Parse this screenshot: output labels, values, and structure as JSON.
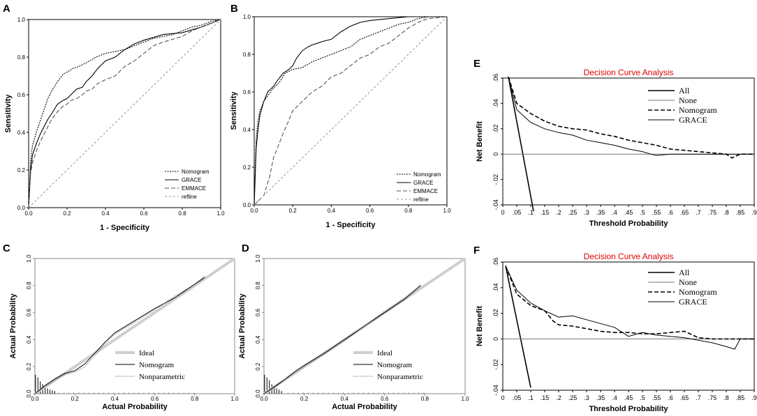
{
  "panels": {
    "A": {
      "letter": "A",
      "chart_data": {
        "type": "line",
        "xlabel": "1 - Specificity",
        "ylabel": "Sensitivity",
        "xlim": [
          0,
          1
        ],
        "ylim": [
          0,
          1
        ],
        "xticks": [
          "0.0",
          "0.2",
          "0.4",
          "0.6",
          "0.8",
          "1.0"
        ],
        "yticks": [
          "0.0",
          "0.2",
          "0.4",
          "0.6",
          "0.8",
          "1.0"
        ],
        "legend": [
          "Nomogram",
          "GRACE",
          "EMMACE",
          "refline"
        ],
        "series": [
          {
            "name": "Nomogram",
            "x": [
              0,
              0.01,
              0.02,
              0.04,
              0.06,
              0.08,
              0.1,
              0.12,
              0.15,
              0.18,
              0.2,
              0.23,
              0.26,
              0.3,
              0.35,
              0.4,
              0.45,
              0.5,
              0.55,
              0.6,
              0.65,
              0.7,
              0.75,
              0.8,
              0.85,
              0.9,
              0.95,
              1
            ],
            "y": [
              0,
              0.25,
              0.33,
              0.4,
              0.46,
              0.52,
              0.58,
              0.62,
              0.67,
              0.71,
              0.72,
              0.74,
              0.75,
              0.77,
              0.8,
              0.82,
              0.83,
              0.84,
              0.86,
              0.88,
              0.9,
              0.91,
              0.92,
              0.94,
              0.96,
              0.97,
              0.99,
              1
            ]
          },
          {
            "name": "GRACE",
            "x": [
              0,
              0.01,
              0.02,
              0.04,
              0.06,
              0.08,
              0.1,
              0.12,
              0.15,
              0.18,
              0.2,
              0.22,
              0.25,
              0.28,
              0.3,
              0.33,
              0.36,
              0.4,
              0.45,
              0.5,
              0.55,
              0.6,
              0.7,
              0.8,
              0.9,
              0.95,
              1
            ],
            "y": [
              0,
              0.2,
              0.28,
              0.34,
              0.39,
              0.43,
              0.47,
              0.5,
              0.55,
              0.57,
              0.58,
              0.6,
              0.63,
              0.64,
              0.67,
              0.7,
              0.74,
              0.78,
              0.8,
              0.84,
              0.87,
              0.89,
              0.92,
              0.93,
              0.96,
              0.98,
              1
            ]
          },
          {
            "name": "EMMACE",
            "x": [
              0,
              0.01,
              0.02,
              0.04,
              0.06,
              0.08,
              0.1,
              0.12,
              0.15,
              0.18,
              0.2,
              0.22,
              0.25,
              0.28,
              0.3,
              0.33,
              0.36,
              0.4,
              0.45,
              0.5,
              0.55,
              0.6,
              0.65,
              0.7,
              0.8,
              0.85,
              0.9,
              0.95,
              1
            ],
            "y": [
              0,
              0.18,
              0.24,
              0.3,
              0.35,
              0.39,
              0.43,
              0.47,
              0.51,
              0.54,
              0.55,
              0.57,
              0.58,
              0.6,
              0.62,
              0.63,
              0.66,
              0.68,
              0.7,
              0.75,
              0.78,
              0.82,
              0.86,
              0.88,
              0.91,
              0.94,
              0.96,
              0.98,
              1
            ]
          },
          {
            "name": "refline",
            "x": [
              0,
              1
            ],
            "y": [
              0,
              1
            ]
          }
        ]
      }
    },
    "B": {
      "letter": "B",
      "chart_data": {
        "type": "line",
        "xlabel": "1 - Specificity",
        "ylabel": "Sensitivity",
        "xlim": [
          0,
          1
        ],
        "ylim": [
          0,
          1
        ],
        "xticks": [
          "0.0",
          "0.2",
          "0.4",
          "0.6",
          "0.8",
          "1.0"
        ],
        "yticks": [
          "0.0",
          "0.2",
          "0.4",
          "0.6",
          "0.8",
          "1.0"
        ],
        "legend": [
          "Nomogram",
          "GRACE",
          "EMMACE",
          "refline"
        ],
        "series": [
          {
            "name": "Nomogram",
            "x": [
              0,
              0.01,
              0.02,
              0.03,
              0.05,
              0.07,
              0.1,
              0.13,
              0.16,
              0.2,
              0.25,
              0.3,
              0.35,
              0.4,
              0.45,
              0.5,
              0.55,
              0.6,
              0.65,
              0.7,
              0.75,
              0.8,
              0.85,
              0.9,
              1
            ],
            "y": [
              0,
              0.35,
              0.45,
              0.5,
              0.55,
              0.58,
              0.62,
              0.65,
              0.7,
              0.72,
              0.73,
              0.76,
              0.78,
              0.8,
              0.82,
              0.84,
              0.88,
              0.9,
              0.92,
              0.94,
              0.96,
              0.97,
              0.99,
              1,
              1
            ]
          },
          {
            "name": "GRACE",
            "x": [
              0,
              0.01,
              0.02,
              0.03,
              0.05,
              0.07,
              0.1,
              0.12,
              0.15,
              0.18,
              0.2,
              0.22,
              0.25,
              0.28,
              0.3,
              0.33,
              0.36,
              0.4,
              0.45,
              0.5,
              0.55,
              0.6,
              0.7,
              0.8,
              0.85,
              0.9,
              1
            ],
            "y": [
              0,
              0.3,
              0.4,
              0.48,
              0.55,
              0.6,
              0.63,
              0.66,
              0.7,
              0.72,
              0.74,
              0.78,
              0.82,
              0.84,
              0.85,
              0.86,
              0.87,
              0.88,
              0.92,
              0.95,
              0.97,
              0.98,
              0.99,
              1,
              1,
              1,
              1
            ]
          },
          {
            "name": "EMMACE",
            "x": [
              0,
              0.05,
              0.08,
              0.1,
              0.12,
              0.15,
              0.18,
              0.2,
              0.25,
              0.3,
              0.35,
              0.4,
              0.45,
              0.5,
              0.55,
              0.6,
              0.65,
              0.7,
              0.75,
              0.8,
              0.85,
              0.9,
              1
            ],
            "y": [
              0,
              0.05,
              0.15,
              0.25,
              0.3,
              0.38,
              0.45,
              0.5,
              0.55,
              0.6,
              0.63,
              0.68,
              0.7,
              0.74,
              0.78,
              0.8,
              0.84,
              0.86,
              0.9,
              0.94,
              0.97,
              0.99,
              1
            ]
          },
          {
            "name": "refline",
            "x": [
              0,
              1
            ],
            "y": [
              0,
              1
            ]
          }
        ]
      }
    },
    "C": {
      "letter": "C",
      "chart_data": {
        "type": "line",
        "xlabel": "Actual Probability",
        "ylabel": "Actual Probability",
        "xlim": [
          0,
          1
        ],
        "ylim": [
          0,
          1
        ],
        "xticks": [
          "0.0",
          "0.2",
          "0.4",
          "0.6",
          "0.8",
          "1.0"
        ],
        "yticks": [
          "0.0",
          "0.2",
          "0.4",
          "0.6",
          "0.8",
          "1.0"
        ],
        "legend": [
          "Ideal",
          "Nomogram",
          "Nonparametric"
        ],
        "series": [
          {
            "name": "Ideal",
            "x": [
              0,
              1
            ],
            "y": [
              0,
              1
            ]
          },
          {
            "name": "Nomogram",
            "x": [
              0,
              0.05,
              0.1,
              0.15,
              0.2,
              0.25,
              0.3,
              0.35,
              0.4,
              0.5,
              0.6,
              0.7,
              0.8,
              0.85
            ],
            "y": [
              0.0,
              0.06,
              0.11,
              0.15,
              0.17,
              0.22,
              0.3,
              0.38,
              0.45,
              0.54,
              0.63,
              0.71,
              0.81,
              0.86
            ]
          },
          {
            "name": "Nonparametric",
            "x": [
              0,
              0.05,
              0.1,
              0.15,
              0.2,
              0.25,
              0.3,
              0.35,
              0.4,
              0.5,
              0.6,
              0.7,
              0.8,
              0.85
            ],
            "y": [
              0.0,
              0.05,
              0.1,
              0.14,
              0.16,
              0.2,
              0.28,
              0.37,
              0.44,
              0.53,
              0.62,
              0.72,
              0.81,
              0.87
            ]
          }
        ],
        "histogram_heights": [
          0.14,
          0.12,
          0.09,
          0.07,
          0.05,
          0.04,
          0.03,
          0.025,
          0.02
        ]
      }
    },
    "D": {
      "letter": "D",
      "chart_data": {
        "type": "line",
        "xlabel": "Actual Probability",
        "ylabel": "Actual Probability",
        "xlim": [
          0,
          1
        ],
        "ylim": [
          0,
          1
        ],
        "xticks": [
          "0.0",
          "0.2",
          "0.4",
          "0.6",
          "0.8",
          "1.0"
        ],
        "yticks": [
          "0.0",
          "0.2",
          "0.4",
          "0.6",
          "0.8",
          "1.0"
        ],
        "legend": [
          "Ideal",
          "Nomogram",
          "Nonparametric"
        ],
        "series": [
          {
            "name": "Ideal",
            "x": [
              0,
              1
            ],
            "y": [
              0,
              1
            ]
          },
          {
            "name": "Nomogram",
            "x": [
              0,
              0.05,
              0.1,
              0.15,
              0.2,
              0.3,
              0.4,
              0.5,
              0.6,
              0.7,
              0.78
            ],
            "y": [
              0.0,
              0.05,
              0.1,
              0.16,
              0.21,
              0.3,
              0.4,
              0.5,
              0.6,
              0.7,
              0.8
            ]
          },
          {
            "name": "Nonparametric",
            "x": [
              0,
              0.05,
              0.1,
              0.15,
              0.2,
              0.3,
              0.4,
              0.5,
              0.6,
              0.7,
              0.78
            ],
            "y": [
              0.0,
              0.04,
              0.1,
              0.15,
              0.2,
              0.29,
              0.39,
              0.5,
              0.61,
              0.71,
              0.81
            ]
          }
        ],
        "histogram_heights": [
          0.14,
          0.12,
          0.1,
          0.07,
          0.05,
          0.04,
          0.03,
          0.02
        ]
      }
    },
    "E": {
      "letter": "E",
      "chart_data": {
        "type": "line",
        "title": "Decision Curve Analysis",
        "xlabel": "Threshold Probability",
        "ylabel": "Net Benefit",
        "xlim": [
          0,
          0.9
        ],
        "ylim": [
          -0.04,
          0.06
        ],
        "xticks": [
          "0",
          ".05",
          ".1",
          ".15",
          ".2",
          ".25",
          ".3",
          ".35",
          ".4",
          ".45",
          ".5",
          ".55",
          ".6",
          ".65",
          ".7",
          ".75",
          ".8",
          ".85",
          ".9"
        ],
        "yticks": [
          ".06",
          ".04",
          ".02",
          "0",
          "-.02",
          "-.04"
        ],
        "legend": [
          "All",
          "None",
          "Nomogram",
          "GRACE"
        ],
        "series": [
          {
            "name": "All",
            "x": [
              0.02,
              0.11
            ],
            "y": [
              0.061,
              -0.045
            ]
          },
          {
            "name": "None",
            "x": [
              0,
              0.9
            ],
            "y": [
              0,
              0
            ]
          },
          {
            "name": "Nomogram",
            "x": [
              0.02,
              0.05,
              0.1,
              0.15,
              0.2,
              0.25,
              0.3,
              0.35,
              0.4,
              0.45,
              0.5,
              0.55,
              0.6,
              0.65,
              0.7,
              0.75,
              0.8,
              0.82,
              0.85,
              0.9
            ],
            "y": [
              0.061,
              0.04,
              0.032,
              0.026,
              0.022,
              0.02,
              0.019,
              0.016,
              0.014,
              0.011,
              0.009,
              0.007,
              0.004,
              0.003,
              0.002,
              0.001,
              0,
              -0.003,
              0,
              0
            ]
          },
          {
            "name": "GRACE",
            "x": [
              0.02,
              0.05,
              0.1,
              0.15,
              0.2,
              0.25,
              0.3,
              0.35,
              0.4,
              0.45,
              0.5,
              0.53,
              0.55,
              0.6,
              0.65,
              0.7,
              0.75,
              0.8,
              0.85,
              0.9
            ],
            "y": [
              0.061,
              0.035,
              0.025,
              0.02,
              0.017,
              0.015,
              0.011,
              0.009,
              0.007,
              0.004,
              0.002,
              0,
              -0.001,
              0,
              0,
              0,
              0,
              0,
              0,
              0
            ]
          }
        ]
      }
    },
    "F": {
      "letter": "F",
      "chart_data": {
        "type": "line",
        "title": "Decision Curve Analysis",
        "xlabel": "Threshold Probability",
        "ylabel": "Net Benefit",
        "xlim": [
          0,
          0.9
        ],
        "ylim": [
          -0.04,
          0.06
        ],
        "xticks": [
          "0",
          ".05",
          ".1",
          ".15",
          ".2",
          ".25",
          ".3",
          ".35",
          ".4",
          ".45",
          ".5",
          ".55",
          ".6",
          ".65",
          ".7",
          ".75",
          ".8",
          ".85",
          ".9"
        ],
        "yticks": [
          ".06",
          ".04",
          ".02",
          "0",
          "-.02",
          "-.04"
        ],
        "legend": [
          "All",
          "None",
          "Nomogram",
          "GRACE"
        ],
        "series": [
          {
            "name": "All",
            "x": [
              0.01,
              0.1
            ],
            "y": [
              0.057,
              -0.038
            ]
          },
          {
            "name": "None",
            "x": [
              0,
              0.9
            ],
            "y": [
              0,
              0
            ]
          },
          {
            "name": "Nomogram",
            "x": [
              0.01,
              0.05,
              0.1,
              0.15,
              0.18,
              0.2,
              0.25,
              0.3,
              0.35,
              0.4,
              0.45,
              0.5,
              0.55,
              0.6,
              0.65,
              0.7,
              0.75,
              0.8,
              0.85,
              0.9
            ],
            "y": [
              0.057,
              0.035,
              0.026,
              0.022,
              0.014,
              0.011,
              0.01,
              0.008,
              0.006,
              0.005,
              0.005,
              0.004,
              0.004,
              0.005,
              0.006,
              0.001,
              0,
              0,
              0,
              0
            ]
          },
          {
            "name": "GRACE",
            "x": [
              0.01,
              0.05,
              0.1,
              0.15,
              0.2,
              0.25,
              0.3,
              0.35,
              0.4,
              0.45,
              0.5,
              0.55,
              0.6,
              0.65,
              0.7,
              0.75,
              0.8,
              0.83,
              0.85,
              0.9
            ],
            "y": [
              0.057,
              0.038,
              0.028,
              0.022,
              0.017,
              0.018,
              0.015,
              0.012,
              0.009,
              0.002,
              0.005,
              0.003,
              0.002,
              0.001,
              -0.001,
              -0.003,
              -0.006,
              -0.008,
              0,
              0
            ]
          }
        ]
      }
    }
  }
}
